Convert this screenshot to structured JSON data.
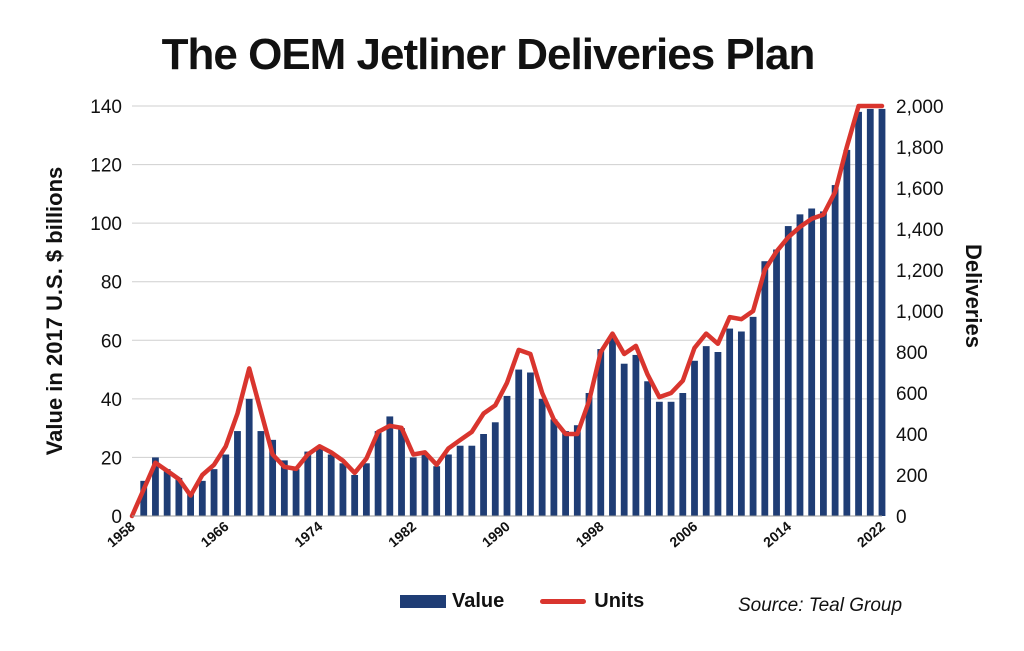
{
  "chart_data": {
    "type": "bar",
    "title": "The OEM Jetliner Deliveries Plan",
    "ylabel": "Value in 2017 U.S. $ billions",
    "y2label": "Deliveries",
    "source": "Source: Teal Group",
    "ylim": [
      0,
      140
    ],
    "y2lim": [
      0,
      2000
    ],
    "yticks": [
      "0",
      "20",
      "40",
      "60",
      "80",
      "100",
      "120",
      "140"
    ],
    "y2ticks": [
      "0",
      "200",
      "400",
      "600",
      "800",
      "1,000",
      "1,200",
      "1,400",
      "1,600",
      "1,800",
      "2,000"
    ],
    "xtick_labels": [
      "1958",
      "1966",
      "1974",
      "1982",
      "1990",
      "1998",
      "2006",
      "2014",
      "2022"
    ],
    "x": [
      1958,
      1959,
      1960,
      1961,
      1962,
      1963,
      1964,
      1965,
      1966,
      1967,
      1968,
      1969,
      1970,
      1971,
      1972,
      1973,
      1974,
      1975,
      1976,
      1977,
      1978,
      1979,
      1980,
      1981,
      1982,
      1983,
      1984,
      1985,
      1986,
      1987,
      1988,
      1989,
      1990,
      1991,
      1992,
      1993,
      1994,
      1995,
      1996,
      1997,
      1998,
      1999,
      2000,
      2001,
      2002,
      2003,
      2004,
      2005,
      2006,
      2007,
      2008,
      2009,
      2010,
      2011,
      2012,
      2013,
      2014,
      2015,
      2016,
      2017,
      2018,
      2019,
      2020,
      2021,
      2022
    ],
    "series": [
      {
        "name": "Value",
        "type": "bar",
        "axis": "left",
        "color": "#1f3d75",
        "values": [
          0,
          12,
          20,
          16,
          13,
          8,
          12,
          16,
          21,
          29,
          40,
          29,
          26,
          19,
          16,
          22,
          23,
          21,
          18,
          14,
          18,
          29,
          34,
          30,
          20,
          21,
          17,
          21,
          24,
          24,
          28,
          32,
          41,
          50,
          49,
          40,
          33,
          29,
          31,
          42,
          57,
          61,
          52,
          55,
          46,
          39,
          39,
          42,
          53,
          58,
          56,
          64,
          63,
          68,
          87,
          91,
          99,
          103,
          105,
          104,
          113,
          125,
          138,
          139,
          139
        ]
      },
      {
        "name": "Units",
        "type": "line",
        "axis": "right",
        "color": "#d9352e",
        "values": [
          0,
          130,
          260,
          220,
          180,
          100,
          200,
          250,
          340,
          500,
          720,
          510,
          300,
          240,
          230,
          300,
          340,
          310,
          270,
          210,
          280,
          410,
          440,
          430,
          300,
          310,
          250,
          330,
          370,
          410,
          500,
          540,
          650,
          810,
          790,
          600,
          470,
          400,
          400,
          560,
          800,
          890,
          790,
          830,
          690,
          580,
          600,
          660,
          820,
          890,
          840,
          970,
          960,
          1000,
          1200,
          1290,
          1360,
          1410,
          1450,
          1470,
          1580,
          1800,
          2000,
          2000,
          2000
        ]
      }
    ],
    "grid": true,
    "legend_position": "bottom"
  }
}
